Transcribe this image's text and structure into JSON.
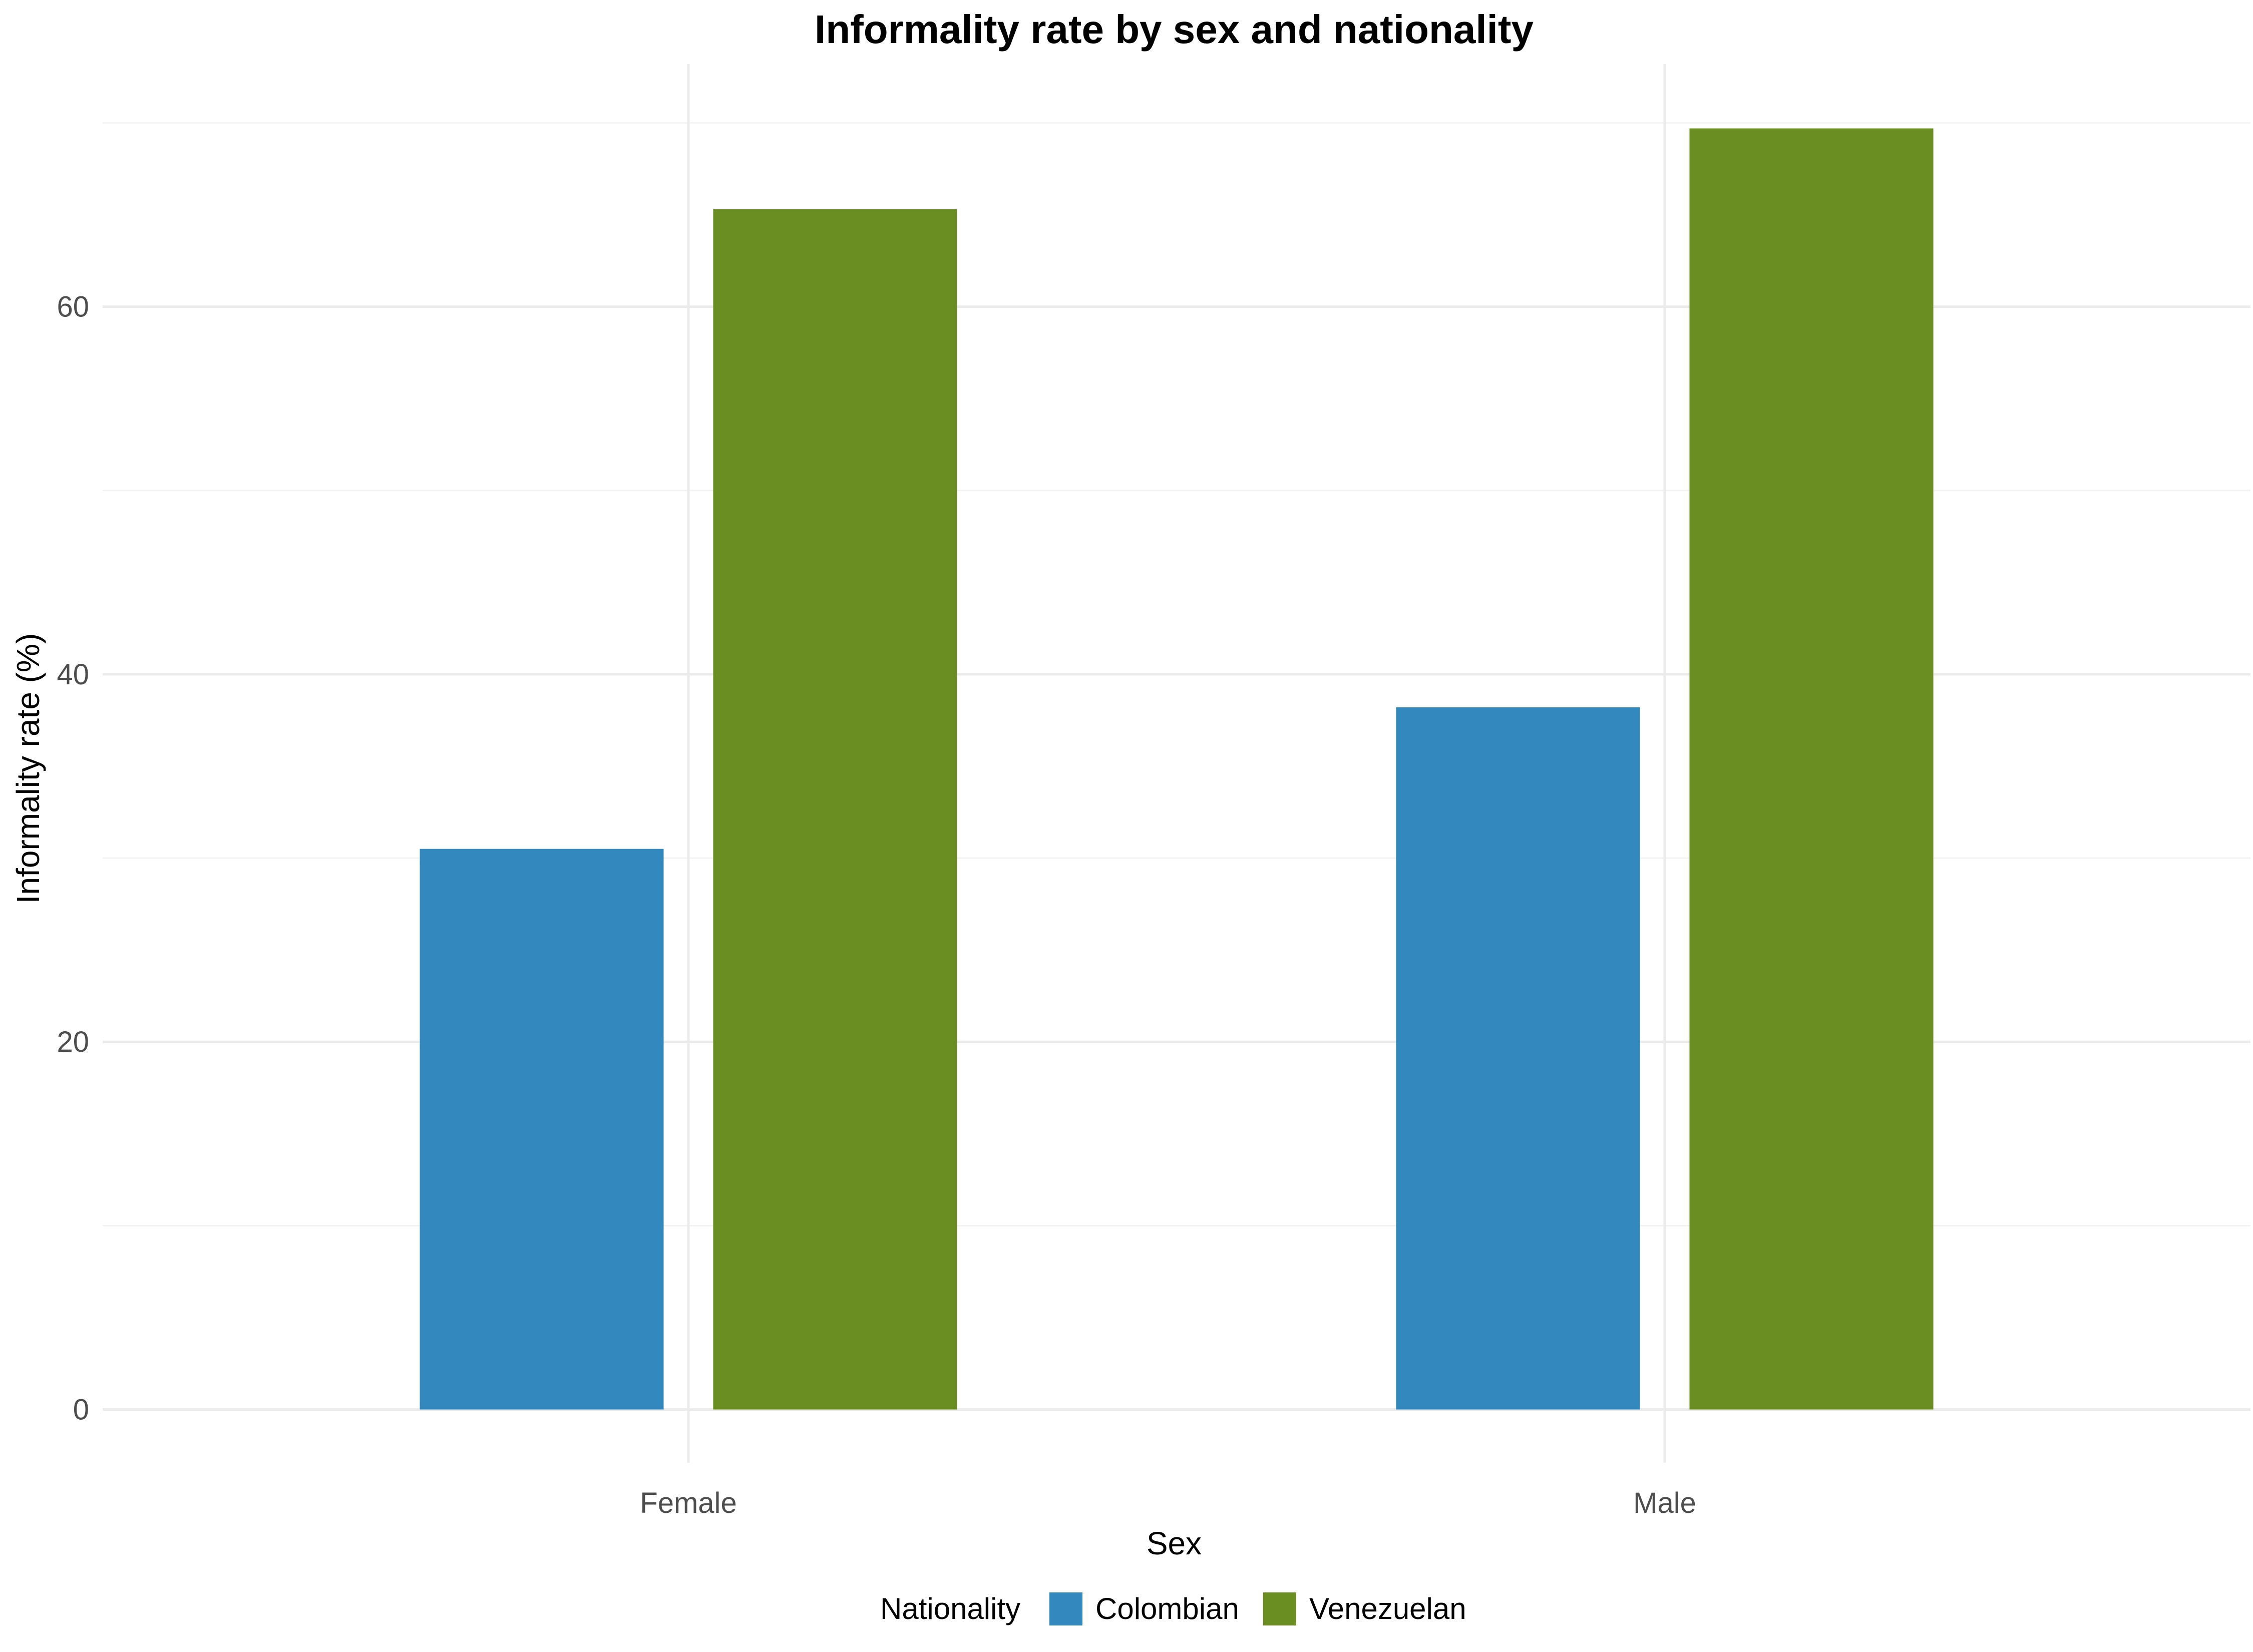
{
  "chart_data": {
    "type": "bar",
    "title": "Informality rate by sex and nationality",
    "xlabel": "Sex",
    "ylabel": "Informality rate (%)",
    "categories": [
      "Female",
      "Male"
    ],
    "series": [
      {
        "name": "Colombian",
        "color": "#3388BD",
        "values": [
          30.5,
          38.2
        ]
      },
      {
        "name": "Venezuelan",
        "color": "#6B8E23",
        "values": [
          65.3,
          69.7
        ]
      }
    ],
    "ylim": [
      -2.9,
      73.2
    ],
    "yticks": [
      0,
      20,
      40,
      60
    ],
    "grid": true,
    "legend": {
      "title": "Nationality",
      "position": "bottom"
    }
  }
}
